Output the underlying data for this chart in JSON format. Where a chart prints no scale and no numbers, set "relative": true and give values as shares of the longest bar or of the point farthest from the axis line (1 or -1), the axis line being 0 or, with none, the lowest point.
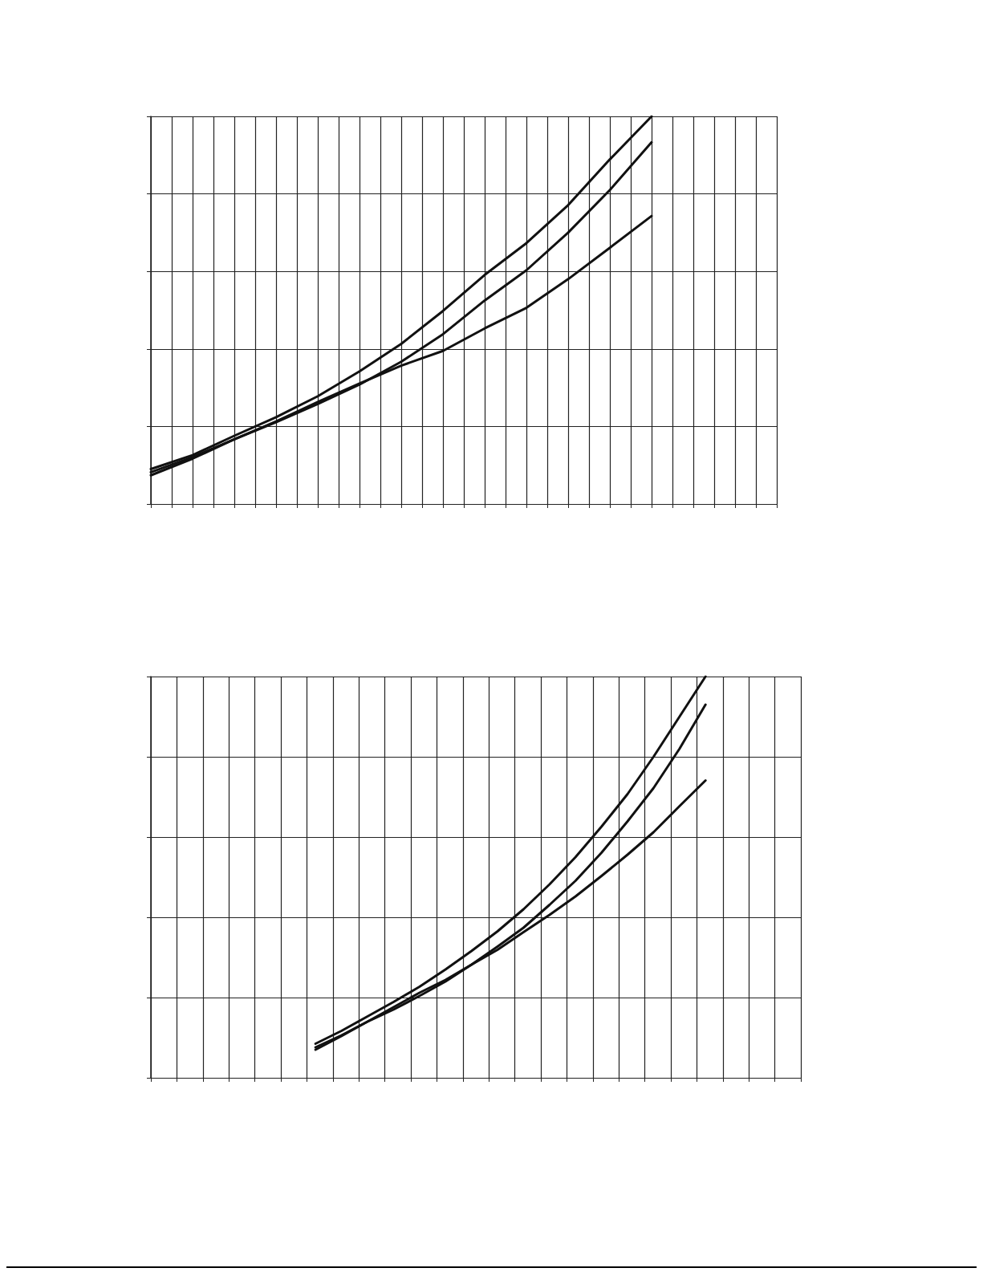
{
  "chart_data": [
    {
      "type": "line",
      "relative": true,
      "grid": true,
      "categories": [
        null,
        null,
        null,
        null,
        null,
        null,
        null,
        null,
        null,
        null,
        null,
        null,
        null,
        null,
        null,
        null,
        null,
        null,
        null,
        null,
        null,
        null,
        null,
        null,
        null,
        null,
        null,
        null,
        null,
        null,
        null
      ],
      "series": [
        {
          "color": "#111111",
          "values": [
            0.09,
            null,
            0.126,
            null,
            0.176,
            null,
            0.224,
            null,
            0.278,
            null,
            0.342,
            null,
            0.413,
            null,
            0.498,
            null,
            0.591,
            null,
            0.673,
            null,
            0.771,
            null,
            0.889,
            null,
            1,
            null,
            null,
            null,
            null,
            null,
            null
          ]
        },
        {
          "color": "#111111",
          "values": [
            0.082,
            null,
            0.121,
            null,
            0.167,
            null,
            0.211,
            null,
            0.258,
            null,
            0.308,
            null,
            0.367,
            null,
            0.438,
            null,
            0.525,
            null,
            0.603,
            null,
            0.7,
            null,
            0.81,
            null,
            0.933,
            null,
            null,
            null,
            null,
            null,
            null
          ]
        },
        {
          "color": "#111111",
          "values": [
            0.074,
            null,
            0.117,
            null,
            0.167,
            null,
            0.213,
            null,
            0.263,
            null,
            0.311,
            null,
            0.357,
            null,
            0.395,
            null,
            0.453,
            null,
            0.506,
            null,
            0.58,
            null,
            0.661,
            null,
            0.743,
            null,
            null,
            null,
            null,
            null,
            null
          ]
        }
      ]
    },
    {
      "type": "line",
      "relative": true,
      "grid": true,
      "categories": [
        null,
        null,
        null,
        null,
        null,
        null,
        null,
        null,
        null,
        null,
        null,
        null,
        null,
        null,
        null,
        null,
        null,
        null,
        null,
        null,
        null,
        null,
        null,
        null,
        null,
        null,
        null,
        null,
        null,
        null,
        null,
        null,
        null,
        null,
        null,
        null,
        null,
        null,
        null,
        null,
        null,
        null,
        null,
        null,
        null,
        null,
        null,
        null,
        null,
        null,
        null,
        null,
        null,
        null,
        null,
        null,
        null,
        null,
        null,
        null,
        null,
        null,
        null,
        null,
        null,
        null,
        null,
        null,
        null,
        null,
        null,
        null,
        null,
        null,
        null,
        null
      ],
      "series": [
        {
          "color": "#111111",
          "values": [
            null,
            null,
            null,
            null,
            null,
            null,
            null,
            null,
            null,
            null,
            null,
            null,
            null,
            null,
            null,
            null,
            null,
            null,
            null,
            0.085,
            null,
            null,
            0.117,
            null,
            null,
            0.153,
            null,
            null,
            0.189,
            null,
            null,
            0.227,
            null,
            null,
            0.27,
            null,
            null,
            0.316,
            null,
            null,
            0.365,
            null,
            null,
            0.42,
            null,
            null,
            0.482,
            null,
            null,
            0.55,
            null,
            null,
            0.626,
            null,
            null,
            0.707,
            null,
            null,
            0.8,
            null,
            null,
            0.9,
            null,
            null,
            1,
            null,
            null,
            null,
            null,
            null,
            null,
            null,
            null,
            null,
            null,
            null
          ]
        },
        {
          "color": "#111111",
          "values": [
            null,
            null,
            null,
            null,
            null,
            null,
            null,
            null,
            null,
            null,
            null,
            null,
            null,
            null,
            null,
            null,
            null,
            null,
            null,
            0.076,
            null,
            null,
            0.106,
            null,
            null,
            0.14,
            null,
            null,
            0.17,
            null,
            null,
            0.204,
            null,
            null,
            0.24,
            null,
            null,
            0.282,
            null,
            null,
            0.327,
            null,
            null,
            0.374,
            null,
            null,
            0.431,
            null,
            null,
            0.491,
            null,
            null,
            0.561,
            null,
            null,
            0.639,
            null,
            null,
            0.722,
            null,
            null,
            0.82,
            null,
            null,
            0.93,
            null,
            null,
            null,
            null,
            null,
            null,
            null,
            null,
            null,
            null,
            null
          ]
        },
        {
          "color": "#111111",
          "values": [
            null,
            null,
            null,
            null,
            null,
            null,
            null,
            null,
            null,
            null,
            null,
            null,
            null,
            null,
            null,
            null,
            null,
            null,
            null,
            0.07,
            null,
            null,
            0.104,
            null,
            null,
            0.14,
            null,
            null,
            0.176,
            null,
            null,
            0.212,
            null,
            null,
            0.244,
            null,
            null,
            0.282,
            null,
            null,
            0.319,
            null,
            null,
            0.363,
            null,
            null,
            0.406,
            null,
            null,
            0.452,
            null,
            null,
            0.503,
            null,
            null,
            0.556,
            null,
            null,
            0.612,
            null,
            null,
            0.677,
            null,
            null,
            0.741,
            null,
            null,
            null,
            null,
            null,
            null,
            null,
            null,
            null,
            null,
            null
          ]
        }
      ]
    }
  ]
}
